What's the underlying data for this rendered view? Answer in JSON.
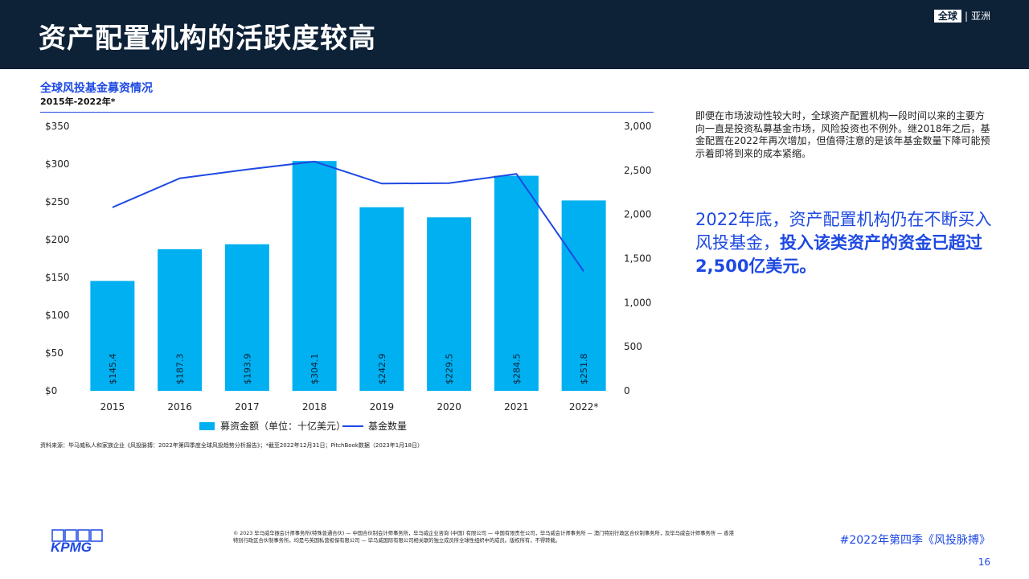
{
  "header": {
    "title": "资产配置机构的活跃度较高",
    "brand_box": "全球",
    "brand_sep": "|",
    "brand_region": "亚洲"
  },
  "chart_heading": {
    "title": "全球风投基金募资情况",
    "subtitle": "2015年-2022年*"
  },
  "chart_data": {
    "type": "bar",
    "categories": [
      "2015",
      "2016",
      "2017",
      "2018",
      "2019",
      "2020",
      "2021",
      "2022*"
    ],
    "series": [
      {
        "name": "募资金额（单位：十亿美元）",
        "type": "bar",
        "axis": "left",
        "values": [
          145.4,
          187.3,
          193.9,
          304.1,
          242.9,
          229.5,
          284.5,
          251.8
        ],
        "labels": [
          "$145.4",
          "$187.3",
          "$193.9",
          "$304.1",
          "$242.9",
          "$229.5",
          "$284.5",
          "$251.8"
        ],
        "color": "#00b0f0"
      },
      {
        "name": "基金数量",
        "type": "line",
        "axis": "right",
        "values": [
          2080,
          2410,
          2510,
          2600,
          2350,
          2355,
          2460,
          1355
        ],
        "color": "#1e49e2"
      }
    ],
    "y_left": {
      "ylim": [
        0,
        350
      ],
      "ticks": [
        "$0",
        "$50",
        "$100",
        "$150",
        "$200",
        "$250",
        "$300",
        "$350"
      ]
    },
    "y_right": {
      "ylim": [
        0,
        3000
      ],
      "ticks": [
        "0",
        "500",
        "1,000",
        "1,500",
        "2,000",
        "2,500",
        "3,000"
      ]
    },
    "grid": false,
    "legend_position": "bottom"
  },
  "source_note": "资料来源：毕马威私人和家族企业《风投脉搏：2022年第四季度全球风投趋势分析报告》；*截至2022年12月31日；PitchBook数据（2023年1月18日）",
  "side_text": "即便在市场波动性较大时，全球资产配置机构一段时间以来的主要方向一直是投资私募基金市场，风险投资也不例外。继2018年之后，基金配置在2022年再次增加，但值得注意的是该年基金数量下降可能预示着即将到来的成本紧缩。",
  "highlight": {
    "normal": "2022年底，资产配置机构仍在不断买入风投基金，",
    "bold": "投入该类资产的资金已超过2,500亿美元。"
  },
  "footer": {
    "logo_text": "KPMG",
    "legal": "© 2023 毕马威华振会计师事务所(特殊普通合伙) — 中国合伙制会计师事务所，毕马威企业咨询 (中国) 有限公司 — 中国有限责任公司，毕马威会计师事务所 — 澳门特别行政区合伙制事务所，及毕马威会计师事务所 — 香港特别行政区合伙制事务所，均是与英国私营担保有限公司 — 毕马威国际有限公司相关联的独立成员所全球性组织中的成员。版权所有，不得转载。",
    "tag": "#2022年第四季《风投脉搏》",
    "page": "16"
  },
  "colors": {
    "header_bg": "#0d2137",
    "accent": "#1e49e2",
    "bar": "#00b0f0"
  }
}
